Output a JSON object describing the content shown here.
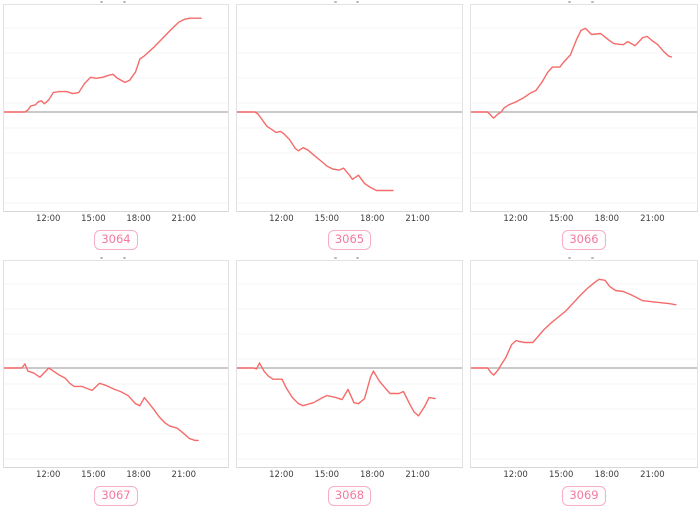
{
  "colors": {
    "line": "#f46b69",
    "zero_line": "#ababab",
    "grid": "#f4f4f4",
    "chart_border": "#e2e2e2",
    "axis_label": "#3d3d3d",
    "badge_text": "#f27b9f",
    "badge_border": "#f6aec8",
    "badge_bg": "#fffcfd"
  },
  "axis": {
    "tick_labels": [
      "12:00",
      "15:00",
      "18:00",
      "21:00"
    ],
    "tick_hours": [
      12,
      15,
      18,
      21
    ],
    "xlim_hours": [
      9,
      24
    ]
  },
  "badges": {
    "labels": [
      "3064",
      "3065",
      "3066",
      "3067",
      "3068",
      "3069"
    ]
  },
  "chart_data": [
    {
      "type": "line",
      "id": "3064",
      "badge_label": "3064",
      "title": "",
      "xlabel": "",
      "ylabel": "",
      "x_unit": "time of day (hours)",
      "xlim": [
        9,
        24
      ],
      "ylim": [
        -100,
        100
      ],
      "zero_baseline": true,
      "x_ticks": [
        "12:00",
        "15:00",
        "18:00",
        "21:00"
      ],
      "x": [
        9.0,
        10.4,
        10.6,
        10.8,
        11.1,
        11.3,
        11.5,
        11.7,
        12.0,
        12.3,
        12.7,
        13.2,
        13.6,
        14.0,
        14.4,
        14.8,
        15.2,
        15.6,
        16.0,
        16.3,
        16.6,
        17.1,
        17.4,
        17.8,
        18.1,
        18.4,
        19.0,
        19.6,
        20.2,
        20.7,
        21.1,
        21.5,
        22.2
      ],
      "y": [
        0,
        0,
        2,
        6,
        7,
        10,
        11,
        8,
        12,
        19,
        20,
        20,
        18,
        19,
        28,
        34,
        33,
        34,
        36,
        37,
        33,
        29,
        31,
        39,
        52,
        55,
        63,
        72,
        81,
        88,
        91,
        92,
        92
      ]
    },
    {
      "type": "line",
      "id": "3065",
      "badge_label": "3065",
      "title": "",
      "xlabel": "",
      "ylabel": "",
      "x_unit": "time of day (hours)",
      "xlim": [
        9,
        24
      ],
      "ylim": [
        -100,
        100
      ],
      "zero_baseline": true,
      "x_ticks": [
        "12:00",
        "15:00",
        "18:00",
        "21:00"
      ],
      "x": [
        9.0,
        10.2,
        10.4,
        10.7,
        11.0,
        11.3,
        11.6,
        11.9,
        12.1,
        12.5,
        12.9,
        13.1,
        13.4,
        13.7,
        14.1,
        14.6,
        15.0,
        15.4,
        15.8,
        16.1,
        16.5,
        16.7,
        17.1,
        17.5,
        17.9,
        18.3,
        18.8,
        19.4
      ],
      "y": [
        0,
        0,
        -2,
        -8,
        -14,
        -17,
        -20,
        -19,
        -21,
        -27,
        -36,
        -38,
        -35,
        -37,
        -42,
        -48,
        -53,
        -56,
        -57,
        -55,
        -62,
        -66,
        -62,
        -70,
        -74,
        -77,
        -77,
        -77
      ]
    },
    {
      "type": "line",
      "id": "3066",
      "badge_label": "3066",
      "title": "",
      "xlabel": "",
      "ylabel": "",
      "x_unit": "time of day (hours)",
      "xlim": [
        9,
        24
      ],
      "ylim": [
        -100,
        100
      ],
      "zero_baseline": true,
      "x_ticks": [
        "12:00",
        "15:00",
        "18:00",
        "21:00"
      ],
      "x": [
        9.0,
        10.1,
        10.3,
        10.5,
        10.8,
        11.0,
        11.2,
        11.5,
        12.0,
        12.5,
        13.0,
        13.3,
        13.7,
        14.1,
        14.4,
        14.9,
        15.1,
        15.6,
        16.0,
        16.3,
        16.6,
        17.0,
        17.6,
        18.1,
        18.5,
        19.1,
        19.4,
        19.9,
        20.4,
        20.7,
        21.1,
        21.4,
        21.8,
        22.1,
        22.3
      ],
      "y": [
        0,
        0,
        -3,
        -6,
        -2,
        0,
        4,
        7,
        10,
        14,
        19,
        21,
        29,
        39,
        44,
        44,
        48,
        56,
        71,
        80,
        82,
        76,
        77,
        71,
        67,
        66,
        69,
        65,
        73,
        74,
        69,
        66,
        59,
        55,
        54
      ]
    },
    {
      "type": "line",
      "id": "3067",
      "badge_label": "3067",
      "title": "",
      "xlabel": "",
      "ylabel": "",
      "x_unit": "time of day (hours)",
      "xlim": [
        9,
        24
      ],
      "ylim": [
        -100,
        100
      ],
      "zero_baseline": true,
      "x_ticks": [
        "12:00",
        "15:00",
        "18:00",
        "21:00"
      ],
      "x": [
        9.0,
        10.2,
        10.4,
        10.6,
        11.0,
        11.4,
        12.0,
        12.6,
        13.1,
        13.4,
        13.7,
        14.2,
        14.9,
        15.4,
        15.8,
        16.4,
        16.8,
        17.3,
        17.8,
        18.1,
        18.4,
        19.0,
        19.4,
        19.8,
        20.1,
        20.6,
        21.1,
        21.4,
        21.8,
        22.0
      ],
      "y": [
        0,
        0,
        4,
        -3,
        -5,
        -9,
        0,
        -6,
        -10,
        -15,
        -18,
        -18,
        -22,
        -15,
        -17,
        -21,
        -23,
        -27,
        -35,
        -37,
        -29,
        -40,
        -48,
        -54,
        -57,
        -59,
        -65,
        -69,
        -71,
        -71
      ]
    },
    {
      "type": "line",
      "id": "3068",
      "badge_label": "3068",
      "title": "",
      "xlabel": "",
      "ylabel": "",
      "x_unit": "time of day (hours)",
      "xlim": [
        9,
        24
      ],
      "ylim": [
        -100,
        100
      ],
      "zero_baseline": true,
      "x_ticks": [
        "12:00",
        "15:00",
        "18:00",
        "21:00"
      ],
      "x": [
        9.0,
        10.1,
        10.3,
        10.5,
        10.8,
        11.1,
        11.4,
        12.0,
        12.3,
        12.7,
        13.1,
        13.4,
        14.1,
        14.7,
        15.0,
        15.6,
        16.0,
        16.4,
        16.8,
        17.1,
        17.5,
        17.9,
        18.1,
        18.5,
        18.9,
        19.2,
        19.8,
        20.1,
        20.5,
        20.8,
        21.1,
        21.5,
        21.8,
        22.2
      ],
      "y": [
        0,
        0,
        -1,
        5,
        -3,
        -8,
        -11,
        -11,
        -20,
        -29,
        -35,
        -37,
        -34,
        -29,
        -27,
        -29,
        -31,
        -21,
        -34,
        -35,
        -30,
        -9,
        -3,
        -13,
        -20,
        -25,
        -25,
        -23,
        -35,
        -43,
        -47,
        -38,
        -29,
        -30
      ]
    },
    {
      "type": "line",
      "id": "3069",
      "badge_label": "3069",
      "title": "",
      "xlabel": "",
      "ylabel": "",
      "x_unit": "time of day (hours)",
      "xlim": [
        9,
        24
      ],
      "ylim": [
        -100,
        100
      ],
      "zero_baseline": true,
      "x_ticks": [
        "12:00",
        "15:00",
        "18:00",
        "21:00"
      ],
      "x": [
        9.0,
        10.1,
        10.3,
        10.5,
        10.8,
        11.0,
        11.3,
        11.7,
        12.0,
        12.2,
        12.6,
        13.1,
        13.4,
        13.8,
        14.3,
        14.8,
        15.3,
        15.8,
        16.3,
        16.8,
        17.3,
        17.5,
        17.9,
        18.2,
        18.6,
        19.1,
        19.6,
        20.0,
        20.4,
        21.0,
        21.6,
        22.2,
        22.6
      ],
      "y": [
        0,
        0,
        -4,
        -7,
        -2,
        3,
        10,
        23,
        27,
        26,
        25,
        25,
        30,
        37,
        44,
        50,
        56,
        64,
        72,
        79,
        85,
        87,
        86,
        80,
        76,
        75,
        72,
        69,
        66,
        65,
        64,
        63,
        62
      ]
    }
  ]
}
